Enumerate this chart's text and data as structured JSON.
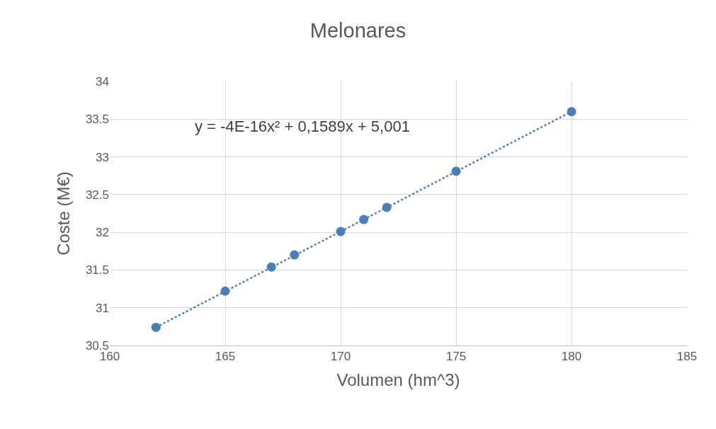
{
  "chart_data": {
    "type": "scatter",
    "title": "Melonares",
    "xlabel": "Volumen (hm^3)",
    "ylabel": "Coste (M€)",
    "xlim": [
      160,
      185
    ],
    "xticks": [
      160,
      165,
      170,
      175,
      180,
      185
    ],
    "ylim": [
      30.5,
      34
    ],
    "yticks": [
      30.5,
      31,
      31.5,
      32,
      32.5,
      33,
      33.5,
      34
    ],
    "grid": true,
    "marker": "circle",
    "annotations": [
      "y = -4E-16x² + 0,1589x + 5,001"
    ],
    "series": [
      {
        "color": "#4a7ebb",
        "x": [
          162,
          165,
          167,
          168,
          170,
          171,
          172,
          175,
          180
        ],
        "values": [
          30.74,
          31.22,
          31.54,
          31.7,
          32.01,
          32.17,
          32.33,
          32.81,
          33.6
        ]
      },
      {
        "type": "line",
        "color": "#4a7ebb",
        "line_style": "dotted",
        "marker": "none",
        "x": [
          162,
          180
        ],
        "values": [
          30.74,
          33.6
        ]
      }
    ]
  }
}
